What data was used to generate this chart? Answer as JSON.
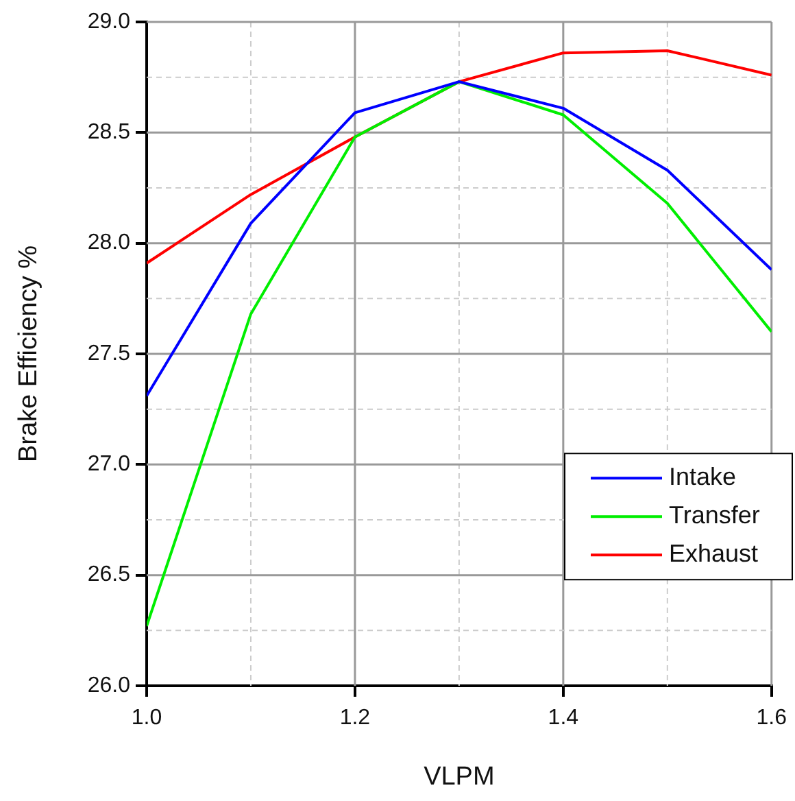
{
  "chart_data": {
    "type": "line",
    "xlabel": "VLPM",
    "ylabel": "Brake Efficiency %",
    "x": [
      1.0,
      1.1,
      1.2,
      1.3,
      1.4,
      1.5,
      1.6
    ],
    "series": [
      {
        "name": "Intake",
        "color": "#0000ff",
        "values": [
          27.31,
          28.09,
          28.59,
          28.73,
          28.61,
          28.33,
          27.88
        ]
      },
      {
        "name": "Transfer",
        "color": "#00ee00",
        "values": [
          26.27,
          27.68,
          28.48,
          28.73,
          28.58,
          28.18,
          27.6
        ]
      },
      {
        "name": "Exhaust",
        "color": "#ff0000",
        "values": [
          27.91,
          28.22,
          28.48,
          28.73,
          28.86,
          28.87,
          28.76
        ]
      }
    ],
    "xlim": [
      1.0,
      1.6
    ],
    "ylim": [
      26.0,
      29.0
    ],
    "xticks": [
      {
        "value": 1.0,
        "label": "1.0"
      },
      {
        "value": 1.1,
        "label": null
      },
      {
        "value": 1.2,
        "label": "1.2"
      },
      {
        "value": 1.3,
        "label": null
      },
      {
        "value": 1.4,
        "label": "1.4"
      },
      {
        "value": 1.5,
        "label": null
      },
      {
        "value": 1.6,
        "label": "1.6"
      }
    ],
    "yticks": [
      {
        "value": 26.0,
        "label": "26.0"
      },
      {
        "value": 26.25,
        "label": null
      },
      {
        "value": 26.5,
        "label": "26.5"
      },
      {
        "value": 26.75,
        "label": null
      },
      {
        "value": 27.0,
        "label": "27.0"
      },
      {
        "value": 27.25,
        "label": null
      },
      {
        "value": 27.5,
        "label": "27.5"
      },
      {
        "value": 27.75,
        "label": null
      },
      {
        "value": 28.0,
        "label": "28.0"
      },
      {
        "value": 28.25,
        "label": null
      },
      {
        "value": 28.5,
        "label": "28.5"
      },
      {
        "value": 28.75,
        "label": null
      },
      {
        "value": 29.0,
        "label": "29.0"
      }
    ],
    "grid": true,
    "legend": "right"
  }
}
